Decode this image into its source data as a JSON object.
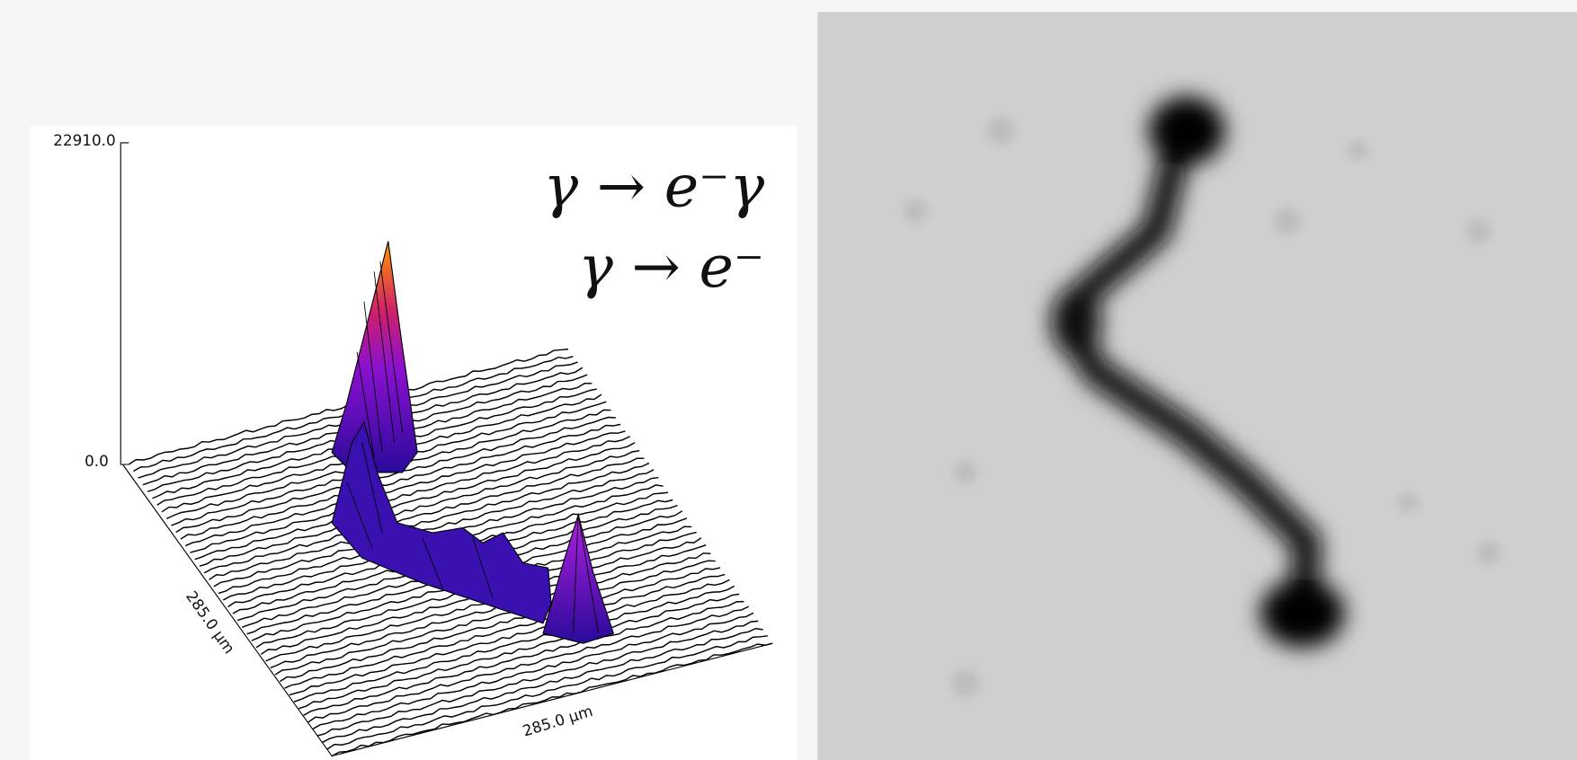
{
  "surface_panel": {
    "z_max_label": "22910.0",
    "z_min_label": "0.0",
    "y_axis_label": "285.0 µm",
    "x_axis_label": "285.0 µm",
    "annotations": [
      "γ → e⁻γ",
      "γ → e⁻"
    ]
  }
}
